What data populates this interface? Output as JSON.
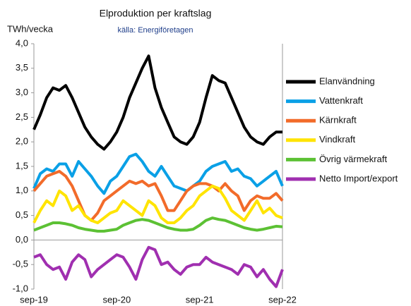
{
  "chart_data": {
    "type": "line",
    "title": "Elproduktion per kraftslag",
    "subtitle": "källa: Energiföretagen",
    "y_label": "TWh/vecka",
    "categories": [
      "sep-19",
      null,
      null,
      null,
      null,
      null,
      null,
      null,
      null,
      null,
      null,
      null,
      null,
      "sep-20",
      null,
      null,
      null,
      null,
      null,
      null,
      null,
      null,
      null,
      null,
      null,
      null,
      "sep-21",
      null,
      null,
      null,
      null,
      null,
      null,
      null,
      null,
      null,
      null,
      null,
      null,
      "sep-22"
    ],
    "ylim": [
      -1.0,
      4.0
    ],
    "yticks": [
      {
        "value": -1.0,
        "label": "-1,0"
      },
      {
        "value": -0.5,
        "label": "-0,5"
      },
      {
        "value": 0.0,
        "label": "0,0"
      },
      {
        "value": 0.5,
        "label": "0,5"
      },
      {
        "value": 1.0,
        "label": "1,0"
      },
      {
        "value": 1.5,
        "label": "1,5"
      },
      {
        "value": 2.0,
        "label": "2,0"
      },
      {
        "value": 2.5,
        "label": "2,5"
      },
      {
        "value": 3.0,
        "label": "3,0"
      },
      {
        "value": 3.5,
        "label": "3,5"
      },
      {
        "value": 4.0,
        "label": "4,0"
      }
    ],
    "grid": false,
    "legend": "right",
    "series": [
      {
        "name": "Elanvändning",
        "color": "#000000",
        "values": [
          2.25,
          2.55,
          2.9,
          3.1,
          3.05,
          3.15,
          2.9,
          2.6,
          2.3,
          2.1,
          1.95,
          1.85,
          2.0,
          2.2,
          2.5,
          2.9,
          3.2,
          3.5,
          3.75,
          3.1,
          2.7,
          2.4,
          2.1,
          2.0,
          1.95,
          2.1,
          2.4,
          2.9,
          3.35,
          3.25,
          3.2,
          2.9,
          2.6,
          2.3,
          2.1,
          2.0,
          1.95,
          2.1,
          2.2,
          2.2
        ]
      },
      {
        "name": "Vattenkraft",
        "color": "#0aa0e6",
        "values": [
          1.05,
          1.35,
          1.45,
          1.4,
          1.55,
          1.55,
          1.3,
          1.6,
          1.45,
          1.3,
          1.1,
          0.95,
          1.2,
          1.3,
          1.5,
          1.7,
          1.75,
          1.6,
          1.4,
          1.3,
          1.5,
          1.3,
          1.1,
          1.05,
          1.0,
          1.1,
          1.2,
          1.4,
          1.5,
          1.55,
          1.6,
          1.4,
          1.45,
          1.3,
          1.25,
          1.1,
          1.2,
          1.3,
          1.4,
          1.1
        ]
      },
      {
        "name": "Kärnkraft",
        "color": "#f26b2a",
        "values": [
          1.0,
          1.15,
          1.3,
          1.35,
          1.4,
          1.3,
          1.1,
          0.8,
          0.5,
          0.4,
          0.55,
          0.8,
          0.9,
          1.0,
          1.1,
          1.2,
          1.15,
          1.2,
          1.1,
          1.15,
          0.9,
          0.6,
          0.6,
          0.8,
          1.0,
          1.1,
          1.15,
          1.15,
          1.1,
          1.0,
          1.15,
          1.0,
          0.9,
          0.6,
          0.8,
          0.9,
          0.85,
          0.85,
          0.95,
          0.8
        ]
      },
      {
        "name": "Vindkraft",
        "color": "#ffe400",
        "values": [
          0.35,
          0.6,
          0.8,
          0.7,
          1.0,
          0.9,
          0.6,
          0.7,
          0.5,
          0.4,
          0.35,
          0.45,
          0.55,
          0.6,
          0.8,
          0.7,
          0.6,
          0.5,
          0.8,
          0.7,
          0.45,
          0.35,
          0.35,
          0.45,
          0.6,
          0.7,
          0.9,
          1.0,
          1.1,
          1.05,
          0.85,
          0.6,
          0.5,
          0.4,
          0.6,
          0.8,
          0.55,
          0.65,
          0.5,
          0.45
        ]
      },
      {
        "name": "Övrig värmekraft",
        "color": "#5cc134",
        "values": [
          0.2,
          0.25,
          0.3,
          0.35,
          0.35,
          0.33,
          0.3,
          0.25,
          0.22,
          0.2,
          0.18,
          0.18,
          0.2,
          0.22,
          0.3,
          0.35,
          0.4,
          0.42,
          0.4,
          0.35,
          0.3,
          0.25,
          0.22,
          0.2,
          0.2,
          0.22,
          0.3,
          0.4,
          0.45,
          0.42,
          0.4,
          0.35,
          0.3,
          0.25,
          0.22,
          0.2,
          0.22,
          0.25,
          0.28,
          0.27
        ]
      },
      {
        "name": "Netto Import/export",
        "color": "#a02fb0",
        "values": [
          -0.35,
          -0.3,
          -0.5,
          -0.6,
          -0.55,
          -0.8,
          -0.45,
          -0.3,
          -0.4,
          -0.75,
          -0.6,
          -0.5,
          -0.4,
          -0.3,
          -0.35,
          -0.55,
          -0.8,
          -0.4,
          -0.15,
          -0.2,
          -0.5,
          -0.45,
          -0.6,
          -0.7,
          -0.55,
          -0.5,
          -0.5,
          -0.35,
          -0.45,
          -0.5,
          -0.55,
          -0.6,
          -0.7,
          -0.5,
          -0.55,
          -0.75,
          -0.6,
          -0.8,
          -0.95,
          -0.6
        ]
      }
    ]
  }
}
